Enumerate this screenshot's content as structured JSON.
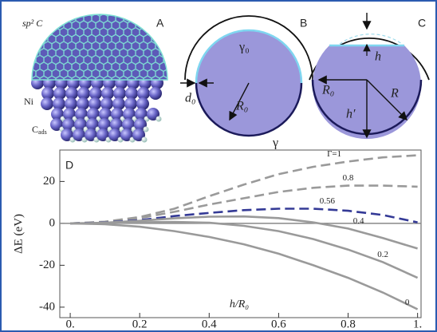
{
  "panels": {
    "A": {
      "letter": "A",
      "sp2": "sp² C",
      "ni": "Ni",
      "cads": "C",
      "cads_sub": "ads"
    },
    "B": {
      "letter": "B",
      "gamma0": "γ₀",
      "d0": "d₀",
      "r0": "R₀",
      "gamma": "γ"
    },
    "C": {
      "letter": "C",
      "h": "h",
      "r0": "R₀",
      "r": "R",
      "hprime": "h′"
    }
  },
  "chart_data": {
    "type": "line",
    "panel_letter": "D",
    "x_label": "h/R₀",
    "y_label": "ΔE (eV)",
    "x": [
      0,
      0.1,
      0.2,
      0.3,
      0.4,
      0.5,
      0.6,
      0.7,
      0.8,
      0.9,
      1
    ],
    "series": [
      {
        "name": "Γ=1",
        "color": "#9a9a9a",
        "style": "dashed",
        "values": [
          0,
          0.8,
          3,
          7,
          13,
          18.5,
          23.5,
          27,
          29.5,
          31.5,
          32.5
        ]
      },
      {
        "name": "0.8",
        "color": "#9a9a9a",
        "style": "dashed",
        "values": [
          0,
          0.6,
          2.5,
          5.5,
          9,
          12,
          15,
          17,
          18,
          18,
          17.5
        ]
      },
      {
        "name": "0.56",
        "color": "#343a96",
        "style": "dashed",
        "values": [
          0,
          0.4,
          1.5,
          3.5,
          5,
          6.3,
          7,
          7,
          6,
          4,
          0.5
        ]
      },
      {
        "name": "0.4",
        "color": "#9a9a9a",
        "style": "solid",
        "values": [
          0,
          0.3,
          1.2,
          2.4,
          3.2,
          3.3,
          2.5,
          0.5,
          -2.5,
          -7,
          -12
        ]
      },
      {
        "name": "0.2",
        "color": "#9a9a9a",
        "style": "solid",
        "values": [
          0,
          0.1,
          0.5,
          0.7,
          0.3,
          -1.2,
          -3.7,
          -7.5,
          -12.5,
          -18.5,
          -26
        ]
      },
      {
        "name": "0",
        "color": "#9a9a9a",
        "style": "solid",
        "values": [
          0,
          -0.4,
          -1.6,
          -3.7,
          -6.5,
          -10,
          -14.5,
          -20,
          -26,
          -33,
          -41
        ]
      }
    ],
    "xlim": [
      -0.03,
      1.01
    ],
    "ylim": [
      -45,
      35
    ],
    "xticks": [
      {
        "value": 0,
        "label": "0."
      },
      0.2,
      0.4,
      0.6,
      0.8,
      {
        "value": 1,
        "label": "1."
      }
    ],
    "yticks": [
      -40,
      -20,
      0,
      20
    ],
    "zero_line": true
  }
}
